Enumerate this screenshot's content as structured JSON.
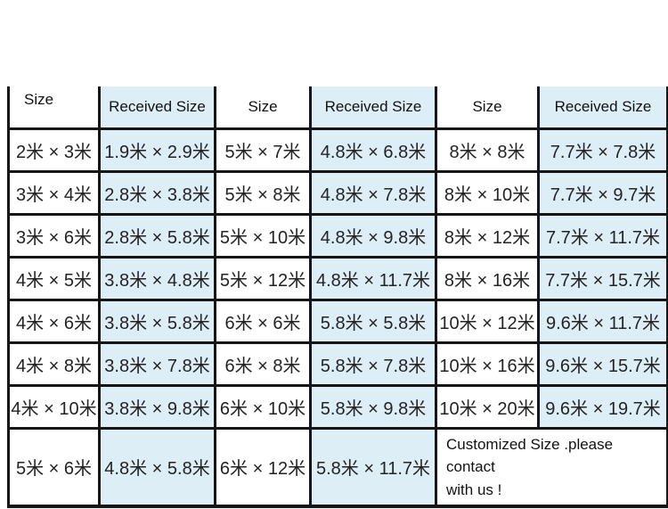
{
  "colors": {
    "background": "#ffffff",
    "received_column_bg": "#ddeef7",
    "grid_border": "#161616",
    "text": "#232323"
  },
  "chart_data": {
    "type": "table",
    "title": "",
    "columns": [
      "Size",
      "Received Size",
      "Size",
      "Received Size",
      "Size",
      "Received Size"
    ],
    "rows": [
      [
        "2米 × 3米",
        "1.9米 × 2.9米",
        "5米 × 7米",
        "4.8米 × 6.8米",
        "8米 × 8米",
        "7.7米 × 7.8米"
      ],
      [
        "3米 × 4米",
        "2.8米 × 3.8米",
        "5米 × 8米",
        "4.8米 × 7.8米",
        "8米 × 10米",
        "7.7米 × 9.7米"
      ],
      [
        "3米 × 6米",
        "2.8米 × 5.8米",
        "5米 × 10米",
        "4.8米 × 9.8米",
        "8米 × 12米",
        "7.7米 × 11.7米"
      ],
      [
        "4米 × 5米",
        "3.8米 × 4.8米",
        "5米 × 12米",
        "4.8米 × 11.7米",
        "8米 × 16米",
        "7.7米 × 15.7米"
      ],
      [
        "4米 × 6米",
        "3.8米 × 5.8米",
        "6米 × 6米",
        "5.8米 × 5.8米",
        "10米 × 12米",
        "9.6米 × 11.7米"
      ],
      [
        "4米 × 8米",
        "3.8米 × 7.8米",
        "6米 × 8米",
        "5.8米 × 7.8米",
        "10米 × 16米",
        "9.6米 × 15.7米"
      ],
      [
        "4米 × 10米",
        "3.8米 × 9.8米",
        "6米 × 10米",
        "5.8米 × 9.8米",
        "10米 × 20米",
        "9.6米 × 19.7米"
      ],
      [
        "5米 × 6米",
        "4.8米 × 5.8米",
        "6米 × 12米",
        "5.8米 × 11.7米"
      ]
    ],
    "merged_note_lines": [
      "Customized Size .please contact",
      "with us !"
    ],
    "layout": {
      "grid": true,
      "top_border": false,
      "highlighted_columns": [
        1,
        3,
        5
      ],
      "merged_cell": {
        "row": 7,
        "columns": [
          4,
          5
        ]
      }
    }
  }
}
